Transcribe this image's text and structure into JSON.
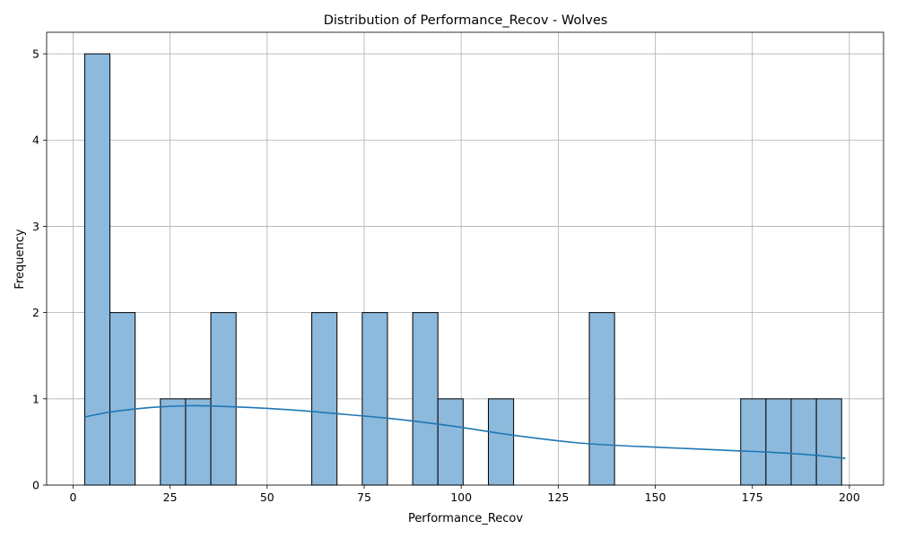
{
  "chart_data": {
    "type": "bar",
    "title": "Distribution of Performance_Recov - Wolves",
    "xlabel": "Performance_Recov",
    "ylabel": "Frequency",
    "xlim": [
      -6.8,
      208.8
    ],
    "ylim": [
      0,
      5.25
    ],
    "xticks": [
      0,
      25,
      50,
      75,
      100,
      125,
      150,
      175,
      200
    ],
    "yticks": [
      0,
      1,
      2,
      3,
      4,
      5
    ],
    "grid": true,
    "bin_edges": [
      3.0,
      9.5,
      16.0,
      22.5,
      29.0,
      35.5,
      42.0,
      48.5,
      55.0,
      61.5,
      68.0,
      74.5,
      81.0,
      87.5,
      94.0,
      100.5,
      107.0,
      113.5,
      120.0,
      126.5,
      133.0,
      139.5,
      146.0,
      152.5,
      159.0,
      165.5,
      172.0,
      178.5,
      185.0,
      191.5,
      198.0
    ],
    "counts": [
      5,
      2,
      0,
      1,
      1,
      2,
      0,
      0,
      0,
      2,
      0,
      2,
      0,
      2,
      1,
      0,
      1,
      0,
      0,
      0,
      2,
      0,
      0,
      0,
      0,
      0,
      1,
      1,
      1,
      1
    ],
    "kde": {
      "x": [
        3,
        10,
        20,
        30,
        40,
        50,
        60,
        70,
        80,
        90,
        100,
        110,
        120,
        130,
        140,
        150,
        160,
        170,
        180,
        190,
        199
      ],
      "y": [
        0.79,
        0.85,
        0.9,
        0.92,
        0.91,
        0.89,
        0.86,
        0.82,
        0.78,
        0.73,
        0.67,
        0.6,
        0.54,
        0.49,
        0.46,
        0.44,
        0.42,
        0.4,
        0.38,
        0.35,
        0.31
      ]
    },
    "colors": {
      "bar_fill": "#8cb9dc",
      "bar_edge": "#000000",
      "kde_line": "#1f77b4",
      "grid": "#b0b0b0"
    }
  }
}
